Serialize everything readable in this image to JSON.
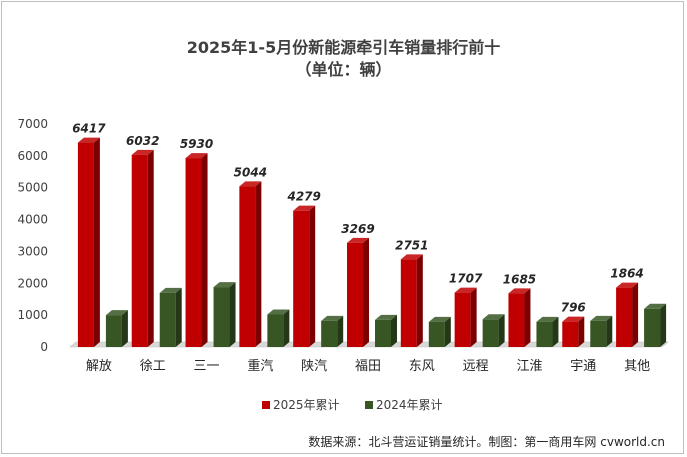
{
  "chart_data": {
    "type": "bar",
    "title": "2025年1-5月份新能源牵引车销量排行前十",
    "subtitle": "（单位：辆）",
    "categories": [
      "解放",
      "徐工",
      "三一",
      "重汽",
      "陕汽",
      "福田",
      "东风",
      "远程",
      "江淮",
      "宇通",
      "其他"
    ],
    "series": [
      {
        "name": "2025年累计",
        "color": "#c00000",
        "values": [
          6417,
          6032,
          5930,
          5044,
          4279,
          3269,
          2751,
          1707,
          1685,
          796,
          1864
        ],
        "labels": [
          "6417",
          "6032",
          "5930",
          "5044",
          "4279",
          "3269",
          "2751",
          "1707",
          "1685",
          "796",
          "1864"
        ]
      },
      {
        "name": "2024年累计",
        "color": "#375623",
        "values": [
          1000,
          1700,
          1880,
          1020,
          820,
          850,
          790,
          870,
          790,
          820,
          1200
        ]
      }
    ],
    "ylim": [
      0,
      7000
    ],
    "yticks": [
      "0",
      "1000",
      "2000",
      "3000",
      "4000",
      "5000",
      "6000",
      "7000"
    ],
    "legend_position": "bottom",
    "grid": false
  },
  "footer": "数据来源：北斗营运证销量统计。制图：第一商用车网 cvworld.cn"
}
